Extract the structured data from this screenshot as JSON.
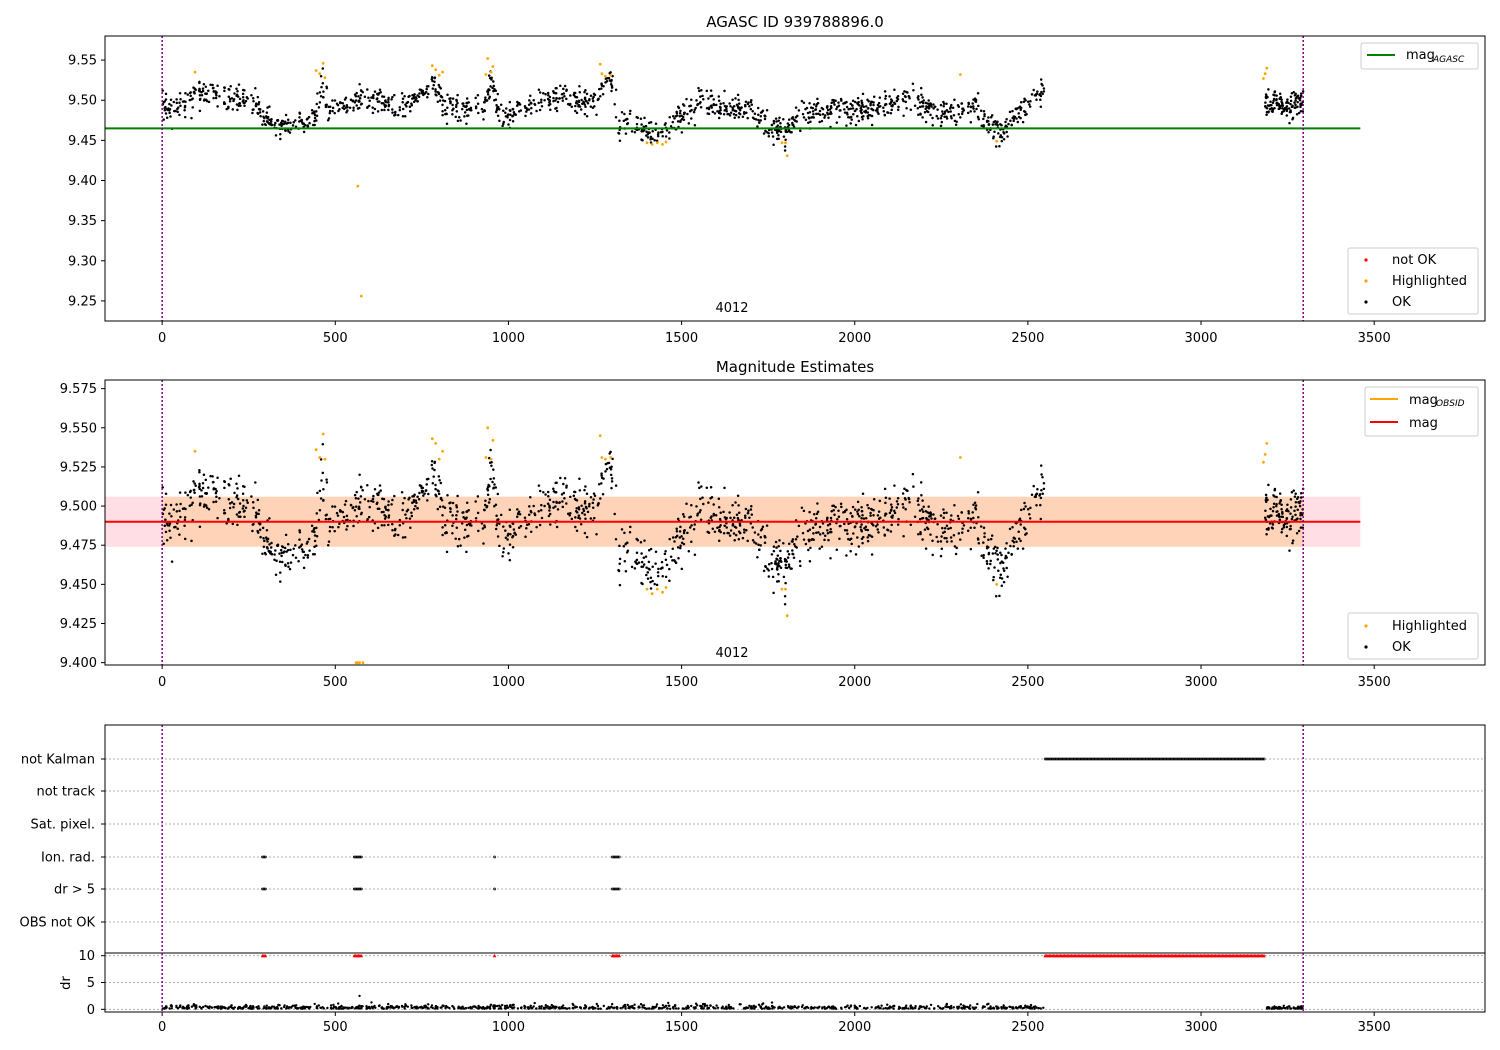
{
  "chart_data": [
    {
      "type": "scatter",
      "title": "AGASC ID 939788896.0",
      "xlim": [
        -165,
        3820
      ],
      "ylim": [
        9.225,
        9.58
      ],
      "xticks": [
        0,
        500,
        1000,
        1500,
        2000,
        2500,
        3000,
        3500
      ],
      "yticks": [
        9.25,
        9.3,
        9.35,
        9.4,
        9.45,
        9.5,
        9.55
      ],
      "annotation": "4012",
      "vlines": [
        0,
        3295
      ],
      "hline": {
        "name": "mag_AGASC",
        "value": 9.465,
        "x_range": [
          -165,
          3460
        ],
        "color": "#008000"
      },
      "legends": {
        "lines": [
          {
            "label": "mag",
            "sub": "AGASC",
            "color": "#008000"
          }
        ],
        "markers": [
          {
            "label": "not OK",
            "color": "#ff0000"
          },
          {
            "label": "Highlighted",
            "color": "#ffa500"
          },
          {
            "label": "OK",
            "color": "#000000"
          }
        ]
      },
      "points_ok_generator": "sampled light curve; values stored below as segments",
      "highlighted": [
        [
          95,
          9.535
        ],
        [
          445,
          9.537
        ],
        [
          455,
          9.533
        ],
        [
          465,
          9.546
        ],
        [
          470,
          9.528
        ],
        [
          565,
          9.393
        ],
        [
          575,
          9.256
        ],
        [
          780,
          9.543
        ],
        [
          790,
          9.538
        ],
        [
          800,
          9.531
        ],
        [
          810,
          9.535
        ],
        [
          940,
          9.552
        ],
        [
          950,
          9.535
        ],
        [
          955,
          9.542
        ],
        [
          935,
          9.532
        ],
        [
          1265,
          9.545
        ],
        [
          1270,
          9.533
        ],
        [
          1280,
          9.53
        ],
        [
          1295,
          9.531
        ],
        [
          1400,
          9.447
        ],
        [
          1415,
          9.445
        ],
        [
          1430,
          9.447
        ],
        [
          1445,
          9.445
        ],
        [
          1455,
          9.448
        ],
        [
          1790,
          9.447
        ],
        [
          1800,
          9.447
        ],
        [
          1805,
          9.431
        ],
        [
          2305,
          9.532
        ],
        [
          2410,
          9.449
        ],
        [
          3185,
          9.533
        ],
        [
          3190,
          9.54
        ],
        [
          3180,
          9.527
        ]
      ]
    },
    {
      "type": "scatter",
      "title": "Magnitude Estimates",
      "xlim": [
        -165,
        3820
      ],
      "ylim": [
        9.3985,
        9.5805
      ],
      "xticks": [
        0,
        500,
        1000,
        1500,
        2000,
        2500,
        3000,
        3500
      ],
      "yticks": [
        9.4,
        9.425,
        9.45,
        9.475,
        9.5,
        9.525,
        9.55,
        9.575
      ],
      "annotation": "4012",
      "vlines": [
        0,
        3295
      ],
      "band": {
        "lo": 9.474,
        "hi": 9.506,
        "x_range": [
          -165,
          3460
        ]
      },
      "hline": {
        "name": "mag",
        "value": 9.49,
        "x_range": [
          -165,
          3460
        ],
        "color": "#ff0000"
      },
      "legends": {
        "lines": [
          {
            "label": "mag",
            "sub": "OBSID",
            "color": "#ffa500"
          },
          {
            "label": "mag",
            "sub": "",
            "color": "#ff0000"
          }
        ],
        "markers": [
          {
            "label": "Highlighted",
            "color": "#ffa500"
          },
          {
            "label": "OK",
            "color": "#000000"
          }
        ]
      },
      "highlighted": [
        [
          95,
          9.535
        ],
        [
          445,
          9.536
        ],
        [
          455,
          9.531
        ],
        [
          465,
          9.546
        ],
        [
          470,
          9.53
        ],
        [
          560,
          9.4
        ],
        [
          565,
          9.4
        ],
        [
          570,
          9.4
        ],
        [
          580,
          9.4
        ],
        [
          780,
          9.543
        ],
        [
          790,
          9.54
        ],
        [
          800,
          9.53
        ],
        [
          810,
          9.535
        ],
        [
          935,
          9.531
        ],
        [
          940,
          9.55
        ],
        [
          950,
          9.53
        ],
        [
          955,
          9.542
        ],
        [
          1265,
          9.545
        ],
        [
          1270,
          9.531
        ],
        [
          1280,
          9.53
        ],
        [
          1295,
          9.531
        ],
        [
          1400,
          9.447
        ],
        [
          1415,
          9.444
        ],
        [
          1430,
          9.447
        ],
        [
          1445,
          9.445
        ],
        [
          1455,
          9.448
        ],
        [
          1790,
          9.447
        ],
        [
          1800,
          9.447
        ],
        [
          1805,
          9.43
        ],
        [
          2305,
          9.531
        ],
        [
          2410,
          9.45
        ],
        [
          3185,
          9.533
        ],
        [
          3190,
          9.54
        ],
        [
          3180,
          9.528
        ]
      ]
    },
    {
      "type": "scatter",
      "title": "",
      "xlim": [
        -165,
        3820
      ],
      "categories": [
        "not Kalman",
        "not track",
        "Sat. pixel.",
        "Ion. rad.",
        "dr > 5",
        "OBS not OK"
      ],
      "flags": {
        "not Kalman": [
          [
            2550,
            3185
          ]
        ],
        "Ion. rad.": [
          [
            290,
            300
          ],
          [
            555,
            575
          ],
          [
            960,
            962
          ],
          [
            1300,
            1320
          ]
        ],
        "dr > 5": [
          [
            290,
            300
          ],
          [
            555,
            575
          ],
          [
            960,
            962
          ],
          [
            1300,
            1320
          ]
        ]
      },
      "vlines": [
        0,
        3295
      ]
    },
    {
      "type": "scatter",
      "title": "",
      "ylabel": "dr",
      "xlim": [
        -165,
        3820
      ],
      "ylim": [
        -0.5,
        10.5
      ],
      "xticks": [
        0,
        500,
        1000,
        1500,
        2000,
        2500,
        3000,
        3500
      ],
      "yticks": [
        0,
        5,
        10
      ],
      "red_markers_x": [
        [
          290,
          300
        ],
        [
          555,
          575
        ],
        [
          960,
          962
        ],
        [
          1300,
          1320
        ],
        [
          2550,
          3185
        ]
      ],
      "vlines": [
        0,
        3295
      ]
    }
  ],
  "labels": {
    "title1": "AGASC ID 939788896.0",
    "title2": "Magnitude Estimates",
    "annotation1": "4012",
    "annotation2": "4012",
    "ylabel_dr": "dr",
    "legend1_line": "mag",
    "legend1_line_sub": "AGASC",
    "legend1_m1": "not OK",
    "legend1_m2": "Highlighted",
    "legend1_m3": "OK",
    "legend2_l1": "mag",
    "legend2_l1_sub": "OBSID",
    "legend2_l2": "mag",
    "legend2_m1": "Highlighted",
    "legend2_m2": "OK"
  }
}
